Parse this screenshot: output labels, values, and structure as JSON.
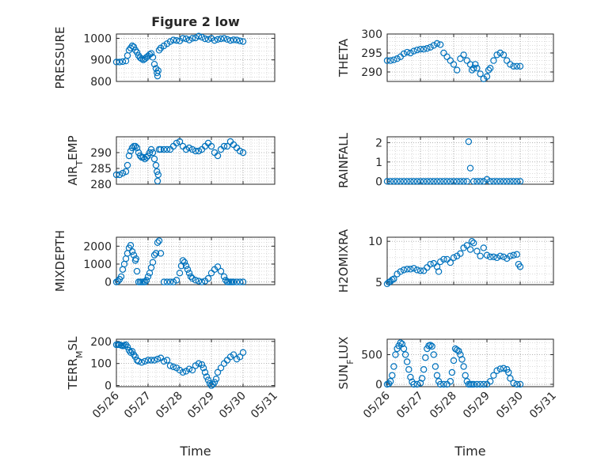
{
  "chart_data": [
    {
      "type": "scatter",
      "title": "Figure 2 low",
      "ylabel": "PRESSURE",
      "xlabel": "",
      "xlim": [
        0,
        5
      ],
      "x_ticks": [
        0,
        1,
        2,
        3,
        4,
        5
      ],
      "x_tick_labels": [
        "05/26",
        "05/27",
        "05/28",
        "05/29",
        "05/30",
        "05/31"
      ],
      "ylim": [
        800,
        1020
      ],
      "y_ticks": [
        800,
        900,
        1000
      ],
      "y_tick_labels": [
        "800",
        "900",
        "1000"
      ],
      "color": "#0072bd",
      "series": [
        {
          "x": [
            0,
            0.1,
            0.2,
            0.3,
            0.35,
            0.4,
            0.45,
            0.5,
            0.55,
            0.6,
            0.65,
            0.7,
            0.75,
            0.8,
            0.85,
            0.9,
            0.95,
            1,
            1.05,
            1.1,
            1.15,
            1.2,
            1.25,
            1.28,
            1.3,
            1.32,
            1.35,
            1.4,
            1.5,
            1.6,
            1.7,
            1.8,
            1.9,
            2,
            2.1,
            2.2,
            2.3,
            2.4,
            2.5,
            2.6,
            2.7,
            2.8,
            2.9,
            3,
            3.1,
            3.2,
            3.3,
            3.4,
            3.5,
            3.6,
            3.7,
            3.8,
            3.9,
            4
          ],
          "y": [
            890,
            890,
            892,
            895,
            920,
            945,
            955,
            965,
            960,
            945,
            935,
            920,
            910,
            905,
            900,
            905,
            912,
            918,
            925,
            930,
            912,
            880,
            860,
            840,
            825,
            850,
            945,
            955,
            965,
            975,
            985,
            992,
            990,
            988,
            1000,
            998,
            992,
            1000,
            1002,
            1010,
            1005,
            998,
            995,
            1000,
            990,
            995,
            998,
            1000,
            995,
            990,
            993,
            992,
            988,
            985
          ]
        }
      ]
    },
    {
      "type": "scatter",
      "title": "",
      "ylabel": "THETA",
      "xlabel": "",
      "xlim": [
        0,
        5
      ],
      "x_ticks": [
        0,
        1,
        2,
        3,
        4,
        5
      ],
      "x_tick_labels": [
        "05/26",
        "05/27",
        "05/28",
        "05/29",
        "05/30",
        "05/31"
      ],
      "ylim": [
        287.5,
        300
      ],
      "y_ticks": [
        290,
        295,
        300
      ],
      "y_tick_labels": [
        "290",
        "295",
        "300"
      ],
      "color": "#0072bd",
      "series": [
        {
          "x": [
            0,
            0.1,
            0.2,
            0.3,
            0.4,
            0.5,
            0.6,
            0.7,
            0.8,
            0.9,
            1,
            1.1,
            1.2,
            1.3,
            1.4,
            1.5,
            1.6,
            1.7,
            1.8,
            1.9,
            2,
            2.1,
            2.2,
            2.3,
            2.4,
            2.5,
            2.55,
            2.6,
            2.65,
            2.7,
            2.8,
            2.9,
            3,
            3.05,
            3.1,
            3.2,
            3.3,
            3.4,
            3.5,
            3.6,
            3.7,
            3.8,
            3.9,
            4
          ],
          "y": [
            293,
            293,
            293.2,
            293.5,
            294,
            294.8,
            295.2,
            295,
            295.5,
            295.8,
            296,
            296,
            296.2,
            296.5,
            297,
            297.5,
            297.2,
            295,
            294,
            293,
            292,
            290.5,
            293.5,
            294.5,
            293,
            292,
            290.5,
            291,
            292,
            291,
            289.5,
            288.2,
            288.8,
            290.5,
            291,
            293,
            294.5,
            295,
            294.5,
            293,
            292,
            291.5,
            291.5,
            291.5
          ]
        }
      ]
    },
    {
      "type": "scatter",
      "title": "",
      "ylabel": "AIR_TEMP",
      "ylabel_sub": "T",
      "ylabel_pre": "AIR",
      "ylabel_post": "EMP",
      "xlabel": "",
      "xlim": [
        0,
        5
      ],
      "x_ticks": [
        0,
        1,
        2,
        3,
        4,
        5
      ],
      "x_tick_labels": [
        "05/26",
        "05/27",
        "05/28",
        "05/29",
        "05/30",
        "05/31"
      ],
      "ylim": [
        280,
        295
      ],
      "y_ticks": [
        280,
        285,
        290
      ],
      "y_tick_labels": [
        "280",
        "285",
        "290"
      ],
      "color": "#0072bd",
      "series": [
        {
          "x": [
            0,
            0.1,
            0.2,
            0.3,
            0.35,
            0.4,
            0.45,
            0.5,
            0.55,
            0.6,
            0.65,
            0.7,
            0.75,
            0.8,
            0.85,
            0.9,
            0.95,
            1,
            1.05,
            1.1,
            1.15,
            1.2,
            1.25,
            1.28,
            1.3,
            1.32,
            1.35,
            1.4,
            1.5,
            1.6,
            1.7,
            1.8,
            1.9,
            2,
            2.1,
            2.2,
            2.3,
            2.4,
            2.5,
            2.6,
            2.7,
            2.8,
            2.9,
            3,
            3.1,
            3.2,
            3.3,
            3.4,
            3.5,
            3.6,
            3.7,
            3.8,
            3.9,
            4
          ],
          "y": [
            283,
            283,
            283.5,
            284,
            286,
            289,
            290.5,
            291.5,
            292,
            292,
            291.5,
            290,
            289,
            288.5,
            288.5,
            288,
            288.5,
            289,
            290,
            291,
            290,
            288,
            286,
            284,
            281,
            283,
            291,
            291,
            291,
            291,
            291,
            292,
            293,
            293.5,
            292,
            291,
            291.5,
            291,
            290.5,
            290.5,
            291,
            292,
            293,
            292,
            290,
            289,
            291,
            292,
            292,
            293.5,
            292.5,
            291.5,
            290.5,
            290
          ]
        }
      ]
    },
    {
      "type": "scatter",
      "title": "",
      "ylabel": "RAINFALL",
      "xlabel": "",
      "xlim": [
        0,
        5
      ],
      "x_ticks": [
        0,
        1,
        2,
        3,
        4,
        5
      ],
      "x_tick_labels": [
        "05/26",
        "05/27",
        "05/28",
        "05/29",
        "05/30",
        "05/31"
      ],
      "ylim": [
        -0.15,
        2.3
      ],
      "y_ticks": [
        0,
        1,
        2
      ],
      "y_tick_labels": [
        "0",
        "1",
        "2"
      ],
      "color": "#0072bd",
      "series": [
        {
          "x": [
            0,
            0.1,
            0.2,
            0.3,
            0.4,
            0.5,
            0.6,
            0.7,
            0.8,
            0.9,
            1,
            1.1,
            1.2,
            1.3,
            1.4,
            1.5,
            1.6,
            1.7,
            1.8,
            1.9,
            2,
            2.1,
            2.2,
            2.3,
            2.4,
            2.45,
            2.5,
            2.6,
            2.7,
            2.8,
            2.9,
            3,
            3.1,
            3.2,
            3.3,
            3.4,
            3.5,
            3.6,
            3.7,
            3.8,
            3.9,
            4
          ],
          "y": [
            0,
            0,
            0,
            0,
            0,
            0,
            0,
            0,
            0,
            0,
            0,
            0,
            0,
            0,
            0,
            0,
            0,
            0,
            0,
            0,
            0,
            0,
            0,
            0,
            0,
            2.05,
            0.68,
            0,
            0,
            0,
            0,
            0.1,
            0,
            0,
            0,
            0,
            0,
            0,
            0,
            0,
            0,
            0
          ]
        }
      ]
    },
    {
      "type": "scatter",
      "title": "",
      "ylabel": "MIXDEPTH",
      "xlabel": "",
      "xlim": [
        0,
        5
      ],
      "x_ticks": [
        0,
        1,
        2,
        3,
        4,
        5
      ],
      "x_tick_labels": [
        "05/26",
        "05/27",
        "05/28",
        "05/29",
        "05/30",
        "05/31"
      ],
      "ylim": [
        -150,
        2500
      ],
      "y_ticks": [
        0,
        1000,
        2000
      ],
      "y_tick_labels": [
        "0",
        "1000",
        "2000"
      ],
      "color": "#0072bd",
      "series": [
        {
          "x": [
            0,
            0.05,
            0.1,
            0.15,
            0.2,
            0.25,
            0.3,
            0.35,
            0.4,
            0.45,
            0.5,
            0.55,
            0.6,
            0.62,
            0.65,
            0.7,
            0.75,
            0.8,
            0.85,
            0.9,
            0.95,
            1,
            1.05,
            1.1,
            1.15,
            1.2,
            1.25,
            1.3,
            1.35,
            1.4,
            1.5,
            1.6,
            1.7,
            1.8,
            1.9,
            2,
            2.05,
            2.1,
            2.15,
            2.2,
            2.25,
            2.3,
            2.35,
            2.4,
            2.5,
            2.6,
            2.7,
            2.8,
            2.9,
            3,
            3.1,
            3.2,
            3.3,
            3.4,
            3.45,
            3.5,
            3.55,
            3.6,
            3.65,
            3.7,
            3.8,
            3.9,
            4
          ],
          "y": [
            0,
            50,
            150,
            300,
            700,
            1000,
            1300,
            1600,
            1900,
            2050,
            1700,
            1500,
            1200,
            1300,
            600,
            0,
            0,
            0,
            0,
            0,
            100,
            300,
            500,
            800,
            1100,
            1500,
            1600,
            2200,
            2300,
            1600,
            0,
            0,
            0,
            0,
            100,
            500,
            900,
            1200,
            1100,
            900,
            700,
            500,
            300,
            200,
            100,
            50,
            0,
            50,
            200,
            500,
            700,
            850,
            600,
            300,
            100,
            0,
            0,
            0,
            0,
            0,
            0,
            0,
            0
          ]
        }
      ]
    },
    {
      "type": "scatter",
      "title": "",
      "ylabel": "H2OMIXRA",
      "xlabel": "",
      "xlim": [
        0,
        5
      ],
      "x_ticks": [
        0,
        1,
        2,
        3,
        4,
        5
      ],
      "x_tick_labels": [
        "05/26",
        "05/27",
        "05/28",
        "05/29",
        "05/30",
        "05/31"
      ],
      "ylim": [
        4.7,
        10.5
      ],
      "y_ticks": [
        5,
        10
      ],
      "y_tick_labels": [
        "5",
        "10"
      ],
      "color": "#0072bd",
      "series": [
        {
          "x": [
            0,
            0.05,
            0.1,
            0.15,
            0.2,
            0.3,
            0.4,
            0.5,
            0.6,
            0.7,
            0.8,
            0.9,
            1,
            1.1,
            1.2,
            1.3,
            1.4,
            1.5,
            1.55,
            1.6,
            1.7,
            1.8,
            1.9,
            2,
            2.1,
            2.2,
            2.3,
            2.4,
            2.5,
            2.55,
            2.6,
            2.7,
            2.8,
            2.9,
            3,
            3.1,
            3.2,
            3.3,
            3.4,
            3.5,
            3.6,
            3.7,
            3.8,
            3.9,
            3.95,
            4
          ],
          "y": [
            4.8,
            5,
            5.1,
            5.3,
            5.4,
            6,
            6.3,
            6.5,
            6.6,
            6.6,
            6.7,
            6.5,
            6.4,
            6.4,
            6.8,
            7.2,
            7.3,
            6.9,
            6.3,
            7.5,
            7.8,
            7.8,
            7.4,
            8,
            8.2,
            8.5,
            9.2,
            9.5,
            9,
            10,
            9.8,
            8.8,
            8.2,
            9.2,
            8.3,
            8.1,
            8.1,
            8.0,
            8.2,
            8.1,
            7.9,
            8.2,
            8.3,
            8.4,
            7.2,
            6.9
          ]
        }
      ]
    },
    {
      "type": "scatter",
      "title": "",
      "ylabel": "TERR_MSL",
      "ylabel_pre": "TERR",
      "ylabel_sub": "M",
      "ylabel_post": "SL",
      "xlabel": "Time",
      "xlim": [
        0,
        5
      ],
      "x_ticks": [
        0,
        1,
        2,
        3,
        4,
        5
      ],
      "x_tick_labels": [
        "05/26",
        "05/27",
        "05/28",
        "05/29",
        "05/30",
        "05/31"
      ],
      "ylim": [
        -5,
        210
      ],
      "y_ticks": [
        0,
        100,
        200
      ],
      "y_tick_labels": [
        "0",
        "100",
        "200"
      ],
      "color": "#0072bd",
      "series": [
        {
          "x": [
            0,
            0.05,
            0.1,
            0.15,
            0.2,
            0.25,
            0.3,
            0.35,
            0.4,
            0.45,
            0.5,
            0.55,
            0.6,
            0.65,
            0.7,
            0.8,
            0.9,
            1,
            1.1,
            1.2,
            1.3,
            1.4,
            1.5,
            1.6,
            1.7,
            1.8,
            1.9,
            2,
            2.1,
            2.2,
            2.3,
            2.4,
            2.5,
            2.6,
            2.7,
            2.75,
            2.8,
            2.85,
            2.9,
            2.95,
            3,
            3.05,
            3.1,
            3.15,
            3.2,
            3.3,
            3.4,
            3.5,
            3.6,
            3.7,
            3.8,
            3.9,
            4
          ],
          "y": [
            185,
            185,
            185,
            182,
            180,
            182,
            185,
            175,
            160,
            150,
            155,
            140,
            130,
            115,
            110,
            105,
            110,
            115,
            115,
            115,
            120,
            125,
            110,
            115,
            90,
            85,
            80,
            70,
            60,
            65,
            75,
            70,
            90,
            100,
            95,
            80,
            60,
            40,
            25,
            10,
            0,
            5,
            15,
            30,
            60,
            80,
            100,
            115,
            130,
            140,
            120,
            130,
            150
          ]
        }
      ]
    },
    {
      "type": "scatter",
      "title": "",
      "ylabel": "SUN_FLUX",
      "ylabel_pre": "SUN",
      "ylabel_sub": "F",
      "ylabel_post": "LUX",
      "xlabel": "Time",
      "xlim": [
        0,
        5
      ],
      "x_ticks": [
        0,
        1,
        2,
        3,
        4,
        5
      ],
      "x_tick_labels": [
        "05/26",
        "05/27",
        "05/28",
        "05/29",
        "05/30",
        "05/31"
      ],
      "ylim": [
        -40,
        760
      ],
      "y_ticks": [
        0,
        500
      ],
      "y_tick_labels": [
        "0",
        "500"
      ],
      "color": "#0072bd",
      "series": [
        {
          "x": [
            0,
            0.05,
            0.1,
            0.15,
            0.2,
            0.25,
            0.3,
            0.35,
            0.4,
            0.45,
            0.5,
            0.55,
            0.6,
            0.65,
            0.7,
            0.75,
            0.8,
            0.9,
            1,
            1.05,
            1.1,
            1.15,
            1.2,
            1.25,
            1.3,
            1.35,
            1.4,
            1.45,
            1.5,
            1.55,
            1.6,
            1.7,
            1.8,
            1.9,
            1.95,
            2,
            2.05,
            2.1,
            2.15,
            2.2,
            2.25,
            2.3,
            2.35,
            2.4,
            2.45,
            2.5,
            2.55,
            2.6,
            2.7,
            2.8,
            2.9,
            3,
            3.1,
            3.2,
            3.3,
            3.4,
            3.5,
            3.6,
            3.65,
            3.7,
            3.8,
            3.9,
            4
          ],
          "y": [
            0,
            10,
            50,
            150,
            300,
            500,
            600,
            650,
            700,
            680,
            600,
            500,
            380,
            250,
            120,
            40,
            0,
            0,
            20,
            100,
            250,
            450,
            600,
            650,
            660,
            640,
            500,
            300,
            150,
            50,
            0,
            0,
            0,
            50,
            200,
            400,
            600,
            580,
            560,
            500,
            420,
            300,
            150,
            50,
            0,
            0,
            0,
            0,
            0,
            0,
            0,
            0,
            50,
            150,
            230,
            260,
            270,
            250,
            200,
            100,
            20,
            0,
            0
          ]
        }
      ]
    }
  ]
}
